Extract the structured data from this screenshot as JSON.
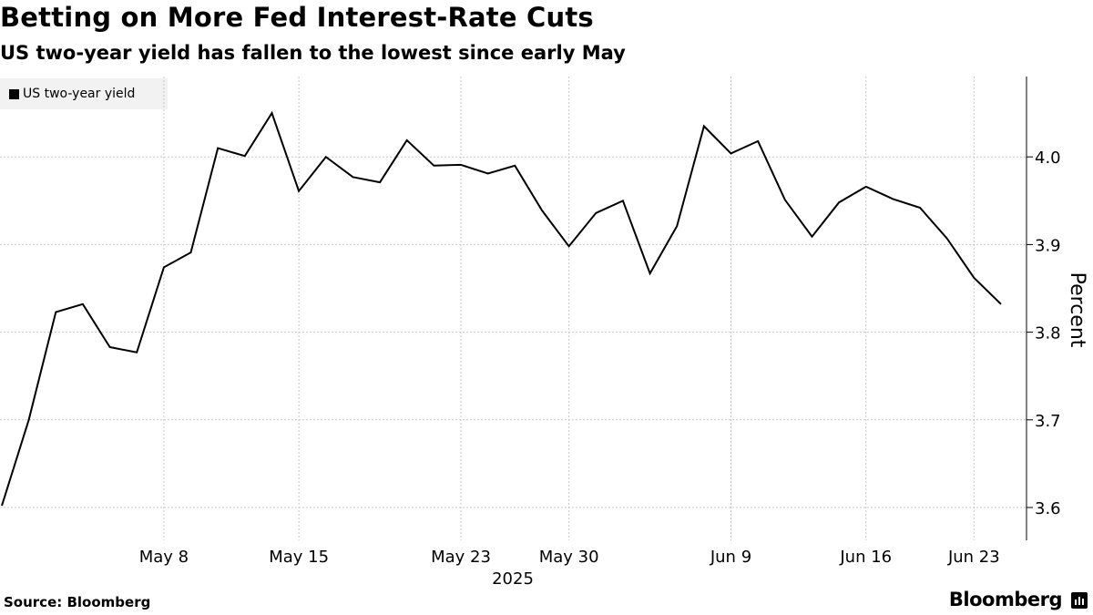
{
  "chart_data": {
    "type": "line",
    "title": "Betting on More Fed Interest-Rate Cuts",
    "subtitle": "US two-year yield has fallen to the lowest since early May",
    "legend": [
      "US two-year yield"
    ],
    "ylabel": "Percent",
    "xlabel": "2025",
    "ylim": [
      3.56,
      4.09
    ],
    "yticks": [
      "3.6",
      "3.7",
      "3.8",
      "3.9",
      "4.0"
    ],
    "xticks": [
      "May 8",
      "May 15",
      "May 23",
      "May 30",
      "Jun 9",
      "Jun 16",
      "Jun 23"
    ],
    "xtick_index": [
      6,
      11,
      17,
      21,
      27,
      32,
      36
    ],
    "series": [
      {
        "name": "US two-year yield",
        "values": [
          3.602,
          3.7,
          3.823,
          3.832,
          3.783,
          3.777,
          3.874,
          3.891,
          4.01,
          4.001,
          4.05,
          3.961,
          4.0,
          3.977,
          3.971,
          4.019,
          3.99,
          3.991,
          3.981,
          3.99,
          3.939,
          3.898,
          3.936,
          3.95,
          3.867,
          3.921,
          4.035,
          4.004,
          4.018,
          3.951,
          3.909,
          3.948,
          3.966,
          3.952,
          3.942,
          3.907,
          3.862,
          3.832
        ]
      }
    ]
  },
  "footer": {
    "source": "Source: Bloomberg",
    "brand": "Bloomberg"
  }
}
